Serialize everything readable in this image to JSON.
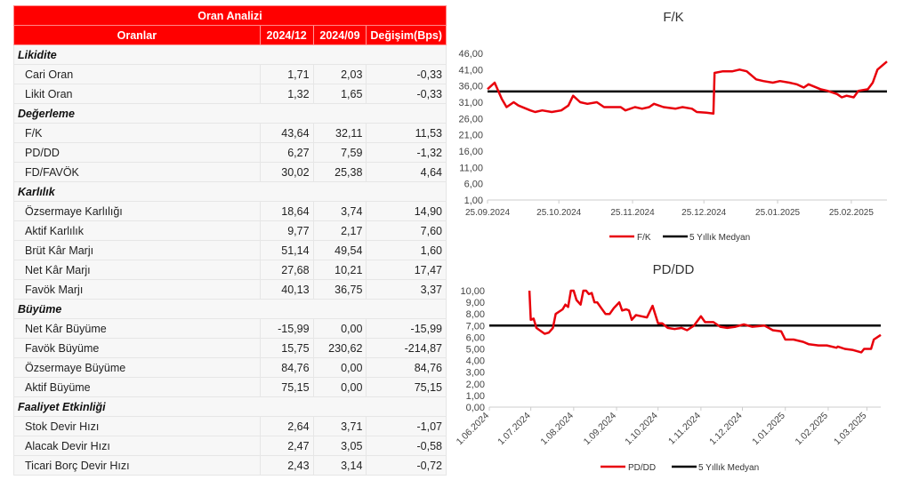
{
  "table": {
    "title": "Oran Analizi",
    "headers": [
      "Oranlar",
      "2024/12",
      "2024/09",
      "Değişim(Bps)"
    ],
    "groups": [
      {
        "name": "Likidite",
        "rows": [
          [
            "Cari Oran",
            "1,71",
            "2,03",
            "-0,33"
          ],
          [
            "Likit Oran",
            "1,32",
            "1,65",
            "-0,33"
          ]
        ]
      },
      {
        "name": "Değerleme",
        "rows": [
          [
            "F/K",
            "43,64",
            "32,11",
            "11,53"
          ],
          [
            "PD/DD",
            "6,27",
            "7,59",
            "-1,32"
          ],
          [
            "FD/FAVÖK",
            "30,02",
            "25,38",
            "4,64"
          ]
        ]
      },
      {
        "name": "Karlılık",
        "rows": [
          [
            "Özsermaye Karlılığı",
            "18,64",
            "3,74",
            "14,90"
          ],
          [
            "Aktif Karlılık",
            "9,77",
            "2,17",
            "7,60"
          ],
          [
            "Brüt Kâr Marjı",
            "51,14",
            "49,54",
            "1,60"
          ],
          [
            "Net Kâr Marjı",
            "27,68",
            "10,21",
            "17,47"
          ],
          [
            "Favök Marjı",
            "40,13",
            "36,75",
            "3,37"
          ]
        ]
      },
      {
        "name": "Büyüme",
        "rows": [
          [
            "Net Kâr Büyüme",
            "-15,99",
            "0,00",
            "-15,99"
          ],
          [
            "Favök Büyüme",
            "15,75",
            "230,62",
            "-214,87"
          ],
          [
            "Özsermaye Büyüme",
            "84,76",
            "0,00",
            "84,76"
          ],
          [
            "Aktif Büyüme",
            "75,15",
            "0,00",
            "75,15"
          ]
        ]
      },
      {
        "name": "Faaliyet Etkinliği",
        "rows": [
          [
            "Stok Devir Hızı",
            "2,64",
            "3,71",
            "-1,07"
          ],
          [
            "Alacak Devir Hızı",
            "2,47",
            "3,05",
            "-0,58"
          ],
          [
            "Ticari Borç Devir Hızı",
            "2,43",
            "3,14",
            "-0,72"
          ]
        ]
      }
    ]
  },
  "chart_data": [
    {
      "type": "line",
      "title": "F/K",
      "xlabel": "",
      "ylabel": "",
      "x_unit": "days since 25.09.2024",
      "ylim": [
        1,
        46
      ],
      "yticks": [
        "1,00",
        "6,00",
        "11,00",
        "16,00",
        "21,00",
        "26,00",
        "31,00",
        "36,00",
        "41,00",
        "46,00"
      ],
      "xticks": [
        {
          "day": 0,
          "label": "25.09.2024"
        },
        {
          "day": 30,
          "label": "25.10.2024"
        },
        {
          "day": 61,
          "label": "25.11.2024"
        },
        {
          "day": 91,
          "label": "25.12.2024"
        },
        {
          "day": 122,
          "label": "25.01.2025"
        },
        {
          "day": 153,
          "label": "25.02.2025"
        }
      ],
      "xmax": 168,
      "rotate": false,
      "series": [
        {
          "name": "F/K",
          "color": "#e8000b",
          "points": [
            [
              0,
              35
            ],
            [
              3,
              37
            ],
            [
              6,
              32
            ],
            [
              8,
              29.5
            ],
            [
              11,
              31
            ],
            [
              13,
              30
            ],
            [
              18,
              28.5
            ],
            [
              20,
              28
            ],
            [
              23,
              28.5
            ],
            [
              27,
              28
            ],
            [
              31,
              28.5
            ],
            [
              34,
              30
            ],
            [
              36,
              33
            ],
            [
              39,
              31
            ],
            [
              42,
              30.5
            ],
            [
              46,
              31
            ],
            [
              49,
              29.5
            ],
            [
              53,
              29.5
            ],
            [
              56,
              29.5
            ],
            [
              58,
              28.5
            ],
            [
              62,
              29.5
            ],
            [
              65,
              29
            ],
            [
              68,
              29.5
            ],
            [
              70,
              30.5
            ],
            [
              74,
              29.5
            ],
            [
              79,
              29
            ],
            [
              82,
              29.5
            ],
            [
              86,
              29
            ],
            [
              88,
              28
            ],
            [
              92,
              27.8
            ],
            [
              95,
              27.5
            ],
            [
              95.5,
              40
            ],
            [
              99,
              40.5
            ],
            [
              103,
              40.5
            ],
            [
              106,
              41
            ],
            [
              109,
              40.5
            ],
            [
              113,
              38
            ],
            [
              116,
              37.5
            ],
            [
              120,
              37
            ],
            [
              123,
              37.5
            ],
            [
              127,
              37
            ],
            [
              130,
              36.5
            ],
            [
              133,
              35.5
            ],
            [
              135,
              36.5
            ],
            [
              140,
              35
            ],
            [
              143,
              34.5
            ],
            [
              147,
              33.5
            ],
            [
              149,
              32.5
            ],
            [
              151,
              33
            ],
            [
              154,
              32.5
            ],
            [
              156,
              34.5
            ],
            [
              160,
              35
            ],
            [
              162,
              37
            ],
            [
              164,
              41
            ],
            [
              168,
              43.5
            ]
          ]
        },
        {
          "name": "5 Yıllık Medyan",
          "color": "#000000",
          "median": 34.3
        }
      ]
    },
    {
      "type": "line",
      "title": "PD/DD",
      "xlabel": "",
      "ylabel": "",
      "x_unit": "days since 1.06.2024",
      "ylim": [
        0,
        10
      ],
      "yticks": [
        "0,00",
        "1,00",
        "2,00",
        "3,00",
        "4,00",
        "5,00",
        "6,00",
        "7,00",
        "8,00",
        "9,00",
        "10,00"
      ],
      "xticks": [
        {
          "day": 0,
          "label": "1.06.2024"
        },
        {
          "day": 30,
          "label": "1.07.2024"
        },
        {
          "day": 61,
          "label": "1.08.2024"
        },
        {
          "day": 92,
          "label": "1.09.2024"
        },
        {
          "day": 122,
          "label": "1.10.2024"
        },
        {
          "day": 153,
          "label": "1.11.2024"
        },
        {
          "day": 183,
          "label": "1.12.2024"
        },
        {
          "day": 214,
          "label": "1.01.2025"
        },
        {
          "day": 245,
          "label": "1.02.2025"
        },
        {
          "day": 273,
          "label": "1.03.2025"
        }
      ],
      "xmax": 283,
      "rotate": true,
      "series": [
        {
          "name": "PD/DD",
          "color": "#e8000b",
          "points": [
            [
              29,
              10
            ],
            [
              30,
              7.5
            ],
            [
              32,
              7.6
            ],
            [
              34,
              6.8
            ],
            [
              40,
              6.3
            ],
            [
              43,
              6.4
            ],
            [
              46,
              6.8
            ],
            [
              48,
              8
            ],
            [
              53,
              8.4
            ],
            [
              55,
              8.8
            ],
            [
              57,
              8.6
            ],
            [
              59,
              10
            ],
            [
              61,
              10
            ],
            [
              63,
              9.2
            ],
            [
              66,
              8.8
            ],
            [
              68,
              10
            ],
            [
              70,
              10
            ],
            [
              72,
              9.7
            ],
            [
              74,
              9.8
            ],
            [
              76,
              9
            ],
            [
              78,
              9
            ],
            [
              81,
              8.5
            ],
            [
              84,
              8
            ],
            [
              87,
              8
            ],
            [
              90,
              8.5
            ],
            [
              94,
              9
            ],
            [
              96,
              8.3
            ],
            [
              99,
              8.4
            ],
            [
              101,
              8.3
            ],
            [
              103,
              7.5
            ],
            [
              106,
              7.9
            ],
            [
              110,
              7.8
            ],
            [
              114,
              7.7
            ],
            [
              118,
              8.7
            ],
            [
              122,
              7.2
            ],
            [
              125,
              7.2
            ],
            [
              129,
              6.8
            ],
            [
              134,
              6.7
            ],
            [
              139,
              6.8
            ],
            [
              143,
              6.6
            ],
            [
              148,
              7
            ],
            [
              153,
              7.8
            ],
            [
              156,
              7.3
            ],
            [
              162,
              7.3
            ],
            [
              167,
              6.9
            ],
            [
              172,
              6.8
            ],
            [
              178,
              6.9
            ],
            [
              184,
              7.1
            ],
            [
              190,
              6.9
            ],
            [
              199,
              7
            ],
            [
              205,
              6.6
            ],
            [
              211,
              6.5
            ],
            [
              214,
              5.8
            ],
            [
              220,
              5.8
            ],
            [
              227,
              5.6
            ],
            [
              231,
              5.4
            ],
            [
              238,
              5.3
            ],
            [
              244,
              5.3
            ],
            [
              251,
              5.1
            ],
            [
              252,
              5.2
            ],
            [
              257,
              5
            ],
            [
              263,
              4.9
            ],
            [
              269,
              4.7
            ],
            [
              271,
              5
            ],
            [
              276,
              5
            ],
            [
              278,
              5.8
            ],
            [
              283,
              6.2
            ]
          ]
        },
        {
          "name": "5 Yıllık Medyan",
          "color": "#000000",
          "median": 7.0
        }
      ]
    }
  ]
}
